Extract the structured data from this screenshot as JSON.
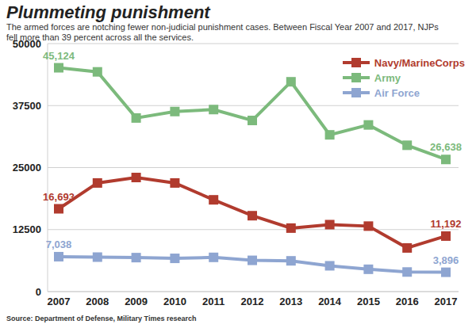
{
  "chart_data": {
    "type": "line",
    "title": "Plummeting punishment",
    "subtitle": "The armed forces are notching fewer non-judicial punishment cases. Between Fiscal Year 2007 and 2017, NJPs fell more than 39 percent across all the services.",
    "source": "Source: Department of Defense, Military Times research",
    "categories": [
      "2007",
      "2008",
      "2009",
      "2010",
      "2011",
      "2012",
      "2013",
      "2014",
      "2015",
      "2016",
      "2017"
    ],
    "series": [
      {
        "name": "Navy/MarineCorps",
        "color": "#b13b2e",
        "values": [
          16693,
          21900,
          23000,
          21900,
          18500,
          15300,
          12800,
          13500,
          13200,
          8800,
          11192
        ],
        "value_labels": [
          "16,693",
          null,
          null,
          null,
          null,
          null,
          null,
          null,
          null,
          null,
          "11,192"
        ]
      },
      {
        "name": "Army",
        "color": "#7cba7c",
        "values": [
          45124,
          44300,
          35000,
          36300,
          36700,
          34500,
          42300,
          31600,
          33600,
          29500,
          26638
        ],
        "value_labels": [
          "45,124",
          null,
          null,
          null,
          null,
          null,
          null,
          null,
          null,
          null,
          "26,638"
        ]
      },
      {
        "name": "Air Force",
        "color": "#8ea5d1",
        "values": [
          7038,
          6950,
          6850,
          6700,
          6900,
          6300,
          6200,
          5200,
          4500,
          3950,
          3896
        ],
        "value_labels": [
          "7,038",
          null,
          null,
          null,
          null,
          null,
          null,
          null,
          null,
          null,
          "3,896"
        ]
      }
    ],
    "ylim": [
      0,
      50000
    ],
    "yticks": [
      0,
      12500,
      25000,
      37500,
      50000
    ],
    "grid": true,
    "legend": "upper right",
    "marker": "square",
    "data_labels": true
  }
}
